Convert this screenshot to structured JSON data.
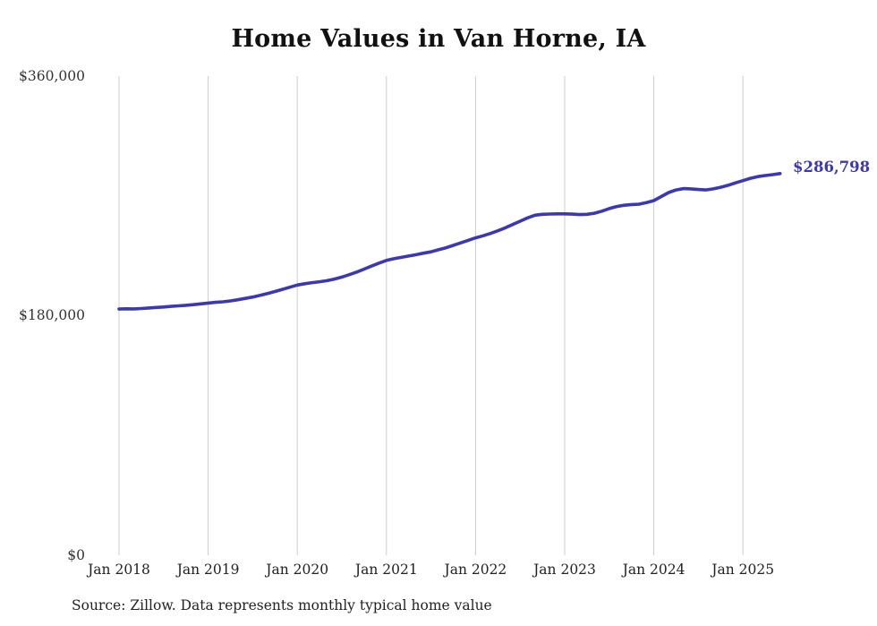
{
  "title": "Home Values in Van Horne, IA",
  "source_note": "Source: Zillow. Data represents monthly typical home value",
  "chart_data": {
    "type": "line",
    "title": "Home Values in Van Horne, IA",
    "series_name": "Monthly typical home value",
    "unit": "USD",
    "start_month": "2018-01",
    "end_month": "2025-06",
    "values": [
      185000,
      185200,
      185100,
      185400,
      185800,
      186200,
      186500,
      187000,
      187400,
      187800,
      188300,
      188900,
      189500,
      190000,
      190400,
      191100,
      192000,
      193000,
      194000,
      195300,
      196700,
      198200,
      199800,
      201400,
      203000,
      204000,
      204800,
      205500,
      206300,
      207500,
      209000,
      210800,
      212800,
      215000,
      217300,
      219500,
      221500,
      222800,
      223800,
      224800,
      225800,
      227000,
      228000,
      229500,
      231000,
      232800,
      234700,
      236600,
      238500,
      240000,
      241800,
      243800,
      246000,
      248500,
      251000,
      253500,
      255500,
      256200,
      256400,
      256500,
      256500,
      256300,
      256000,
      256200,
      257000,
      258500,
      260500,
      262000,
      263000,
      263500,
      263800,
      265000,
      266500,
      269500,
      272500,
      274500,
      275500,
      275300,
      274800,
      274500,
      275300,
      276500,
      278000,
      279800,
      281500,
      283200,
      284500,
      285300,
      286000,
      286798
    ],
    "last_value": 286798,
    "last_value_label": "$286,798",
    "x_ticks": [
      "Jan 2018",
      "Jan 2019",
      "Jan 2020",
      "Jan 2021",
      "Jan 2022",
      "Jan 2023",
      "Jan 2024",
      "Jan 2025"
    ],
    "y_ticks": [
      {
        "label": "$360,000",
        "value": 360000
      },
      {
        "label": "$180,000",
        "value": 180000
      },
      {
        "label": "$0",
        "value": 0
      }
    ],
    "ylim": [
      0,
      360000
    ],
    "grid": true,
    "legend": "none",
    "line_color": "#3b38b2",
    "grid_color": "#cccccc"
  }
}
